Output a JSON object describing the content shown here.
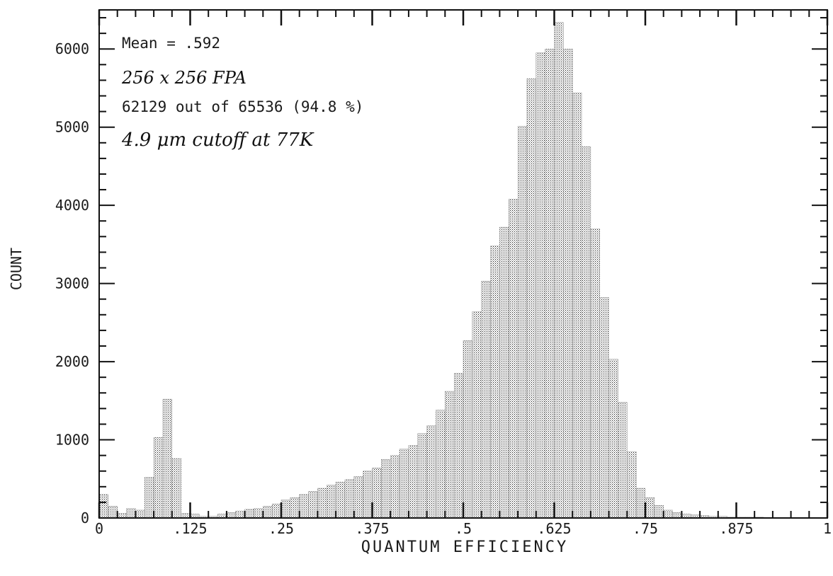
{
  "chart_data": {
    "type": "bar",
    "xlabel": "QUANTUM EFFICIENCY",
    "ylabel": "COUNT",
    "xlim": [
      0,
      1
    ],
    "ylim": [
      0,
      6500
    ],
    "x_ticks": [
      0,
      0.125,
      0.25,
      0.375,
      0.5,
      0.625,
      0.75,
      0.875,
      1
    ],
    "x_tick_labels": [
      "0",
      ".125",
      ".25",
      ".375",
      ".5",
      ".625",
      ".75",
      ".875",
      "1"
    ],
    "y_ticks": [
      0,
      1000,
      2000,
      3000,
      4000,
      5000,
      6000
    ],
    "y_tick_labels": [
      "0",
      "1000",
      "2000",
      "3000",
      "4000",
      "5000",
      "6000"
    ],
    "bin_width": 0.0125,
    "x": [
      0.0,
      0.0125,
      0.025,
      0.0375,
      0.05,
      0.0625,
      0.075,
      0.0875,
      0.1,
      0.1125,
      0.125,
      0.1375,
      0.15,
      0.1625,
      0.175,
      0.1875,
      0.2,
      0.2125,
      0.225,
      0.2375,
      0.25,
      0.2625,
      0.275,
      0.2875,
      0.3,
      0.3125,
      0.325,
      0.3375,
      0.35,
      0.3625,
      0.375,
      0.3875,
      0.4,
      0.4125,
      0.425,
      0.4375,
      0.45,
      0.4625,
      0.475,
      0.4875,
      0.5,
      0.5125,
      0.525,
      0.5375,
      0.55,
      0.5625,
      0.575,
      0.5875,
      0.6,
      0.6125,
      0.625,
      0.6375,
      0.65,
      0.6625,
      0.675,
      0.6875,
      0.7,
      0.7125,
      0.725,
      0.7375,
      0.75,
      0.7625,
      0.775,
      0.7875,
      0.8,
      0.8125,
      0.825,
      0.8375,
      0.85,
      0.8625,
      0.875,
      0.8875,
      0.9,
      0.9125,
      0.925,
      0.9375,
      0.95,
      0.9625,
      0.975,
      0.9875
    ],
    "values": [
      300,
      150,
      60,
      120,
      100,
      520,
      1030,
      1520,
      760,
      60,
      50,
      20,
      20,
      50,
      70,
      90,
      110,
      120,
      150,
      180,
      230,
      260,
      300,
      340,
      380,
      420,
      460,
      490,
      530,
      600,
      640,
      750,
      800,
      880,
      930,
      1080,
      1180,
      1380,
      1620,
      1850,
      2270,
      2640,
      3030,
      3480,
      3720,
      4080,
      5010,
      5620,
      5950,
      6000,
      6340,
      6000,
      5440,
      4750,
      3700,
      2820,
      2030,
      1480,
      850,
      380,
      260,
      160,
      100,
      70,
      50,
      40,
      30,
      20,
      20,
      10,
      10,
      10,
      10,
      5,
      5,
      5,
      5,
      5,
      5,
      5
    ],
    "annotations": [
      "Mean = .592",
      "256 x 256 FPA",
      "62129 out of 65536 (94.8 %)",
      "4.9 μm cutoff at 77K"
    ]
  }
}
